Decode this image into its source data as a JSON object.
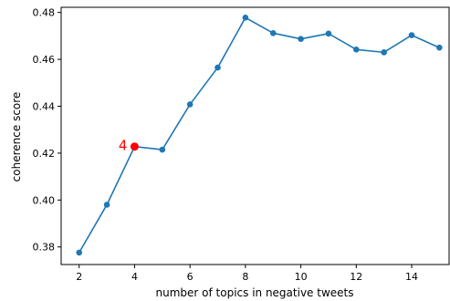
{
  "chart_data": {
    "type": "line",
    "xlabel": "number of topics in negative tweets",
    "ylabel": "coherence score",
    "xlim": [
      1.35,
      15.35
    ],
    "ylim": [
      0.3725,
      0.4822
    ],
    "x_ticks": [
      2,
      4,
      6,
      8,
      10,
      12,
      14
    ],
    "y_ticks": [
      0.38,
      0.4,
      0.42,
      0.44,
      0.46,
      0.48
    ],
    "x_tick_labels": [
      "2",
      "4",
      "6",
      "8",
      "10",
      "12",
      "14"
    ],
    "y_tick_labels": [
      "0.38",
      "0.40",
      "0.42",
      "0.44",
      "0.46",
      "0.48"
    ],
    "series": [
      {
        "x": [
          2,
          3,
          4,
          5,
          6,
          7,
          8,
          9,
          10,
          11,
          12,
          13,
          14,
          15
        ],
        "y": [
          0.3776,
          0.398,
          0.4228,
          0.4215,
          0.4408,
          0.4565,
          0.4778,
          0.4712,
          0.4687,
          0.471,
          0.4642,
          0.463,
          0.4703,
          0.465
        ],
        "color": "#1f77b4"
      }
    ],
    "annotations": [
      {
        "text": "4",
        "x": 4,
        "y": 0.4228,
        "color": "#ff0000"
      }
    ]
  }
}
